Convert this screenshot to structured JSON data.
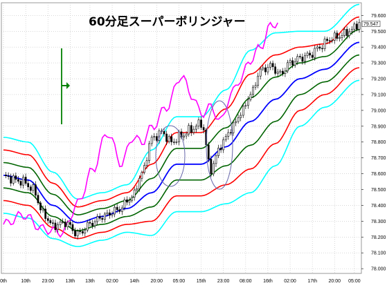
{
  "chart_data": {
    "type": "line",
    "title": "60分足スーパーボリンジャー",
    "xlabel": "",
    "ylabel": "",
    "ylim": [
      77.97,
      79.68
    ],
    "grid": true,
    "legend": "none",
    "current_price": "79.547",
    "y_ticks": [
      "79.600",
      "79.500",
      "79.400",
      "79.300",
      "79.200",
      "79.100",
      "79.000",
      "78.900",
      "78.800",
      "78.700",
      "78.600",
      "78.500",
      "78.400",
      "78.300",
      "78.200",
      "78.100",
      "78.000"
    ],
    "x_ticks": [
      "0th",
      "10th",
      "23:00",
      "13th",
      "13th",
      "02:00",
      "14th",
      "20:00",
      "05:00",
      "15th",
      "23:00",
      "08:00",
      "16th",
      "02:00",
      "17th",
      "20:00",
      "05:00"
    ],
    "x_tick_positions": [
      0,
      9,
      18,
      27,
      35,
      44,
      53,
      62,
      71,
      80,
      89,
      98,
      107,
      116,
      125,
      134,
      142
    ],
    "n": 145,
    "colors": {
      "ma": "#0000ff",
      "sigma1": "#006400",
      "sigma2": "#ff0000",
      "sigma3": "#00ffff",
      "lagging": "#ff00ff",
      "candle_up": "#ffffff",
      "candle_down": "#000000",
      "marker": "#008000",
      "ellipse": "#6666aa"
    },
    "anchors": {
      "ma": [
        [
          0,
          78.59
        ],
        [
          10,
          78.56
        ],
        [
          20,
          78.4
        ],
        [
          30,
          78.29
        ],
        [
          40,
          78.33
        ],
        [
          50,
          78.38
        ],
        [
          60,
          78.48
        ],
        [
          70,
          78.66
        ],
        [
          80,
          78.66
        ],
        [
          90,
          78.77
        ],
        [
          100,
          78.93
        ],
        [
          110,
          79.07
        ],
        [
          120,
          79.2
        ],
        [
          130,
          79.26
        ],
        [
          144,
          79.43
        ]
      ],
      "spread": [
        [
          0,
          0.08
        ],
        [
          10,
          0.08
        ],
        [
          20,
          0.07
        ],
        [
          30,
          0.05
        ],
        [
          40,
          0.05
        ],
        [
          50,
          0.05
        ],
        [
          60,
          0.09
        ],
        [
          70,
          0.1
        ],
        [
          80,
          0.1
        ],
        [
          90,
          0.12
        ],
        [
          100,
          0.15
        ],
        [
          110,
          0.14
        ],
        [
          120,
          0.1
        ],
        [
          130,
          0.08
        ],
        [
          144,
          0.08
        ]
      ],
      "lagging": [
        [
          0,
          78.28
        ],
        [
          8,
          78.34
        ],
        [
          16,
          78.25
        ],
        [
          24,
          78.23
        ],
        [
          30,
          78.41
        ],
        [
          36,
          78.62
        ],
        [
          42,
          78.86
        ],
        [
          48,
          78.66
        ],
        [
          52,
          78.83
        ],
        [
          56,
          78.8
        ],
        [
          60,
          78.89
        ],
        [
          66,
          79.02
        ],
        [
          72,
          79.22
        ],
        [
          76,
          79.1
        ],
        [
          80,
          78.98
        ],
        [
          84,
          79.02
        ],
        [
          88,
          78.93
        ],
        [
          92,
          79.1
        ],
        [
          96,
          79.2
        ],
        [
          100,
          79.32
        ],
        [
          104,
          79.4
        ],
        [
          108,
          79.53
        ],
        [
          111,
          79.56
        ]
      ],
      "close": [
        [
          0,
          78.58
        ],
        [
          8,
          78.55
        ],
        [
          12,
          78.5
        ],
        [
          16,
          78.35
        ],
        [
          20,
          78.27
        ],
        [
          25,
          78.29
        ],
        [
          30,
          78.22
        ],
        [
          36,
          78.29
        ],
        [
          40,
          78.33
        ],
        [
          46,
          78.37
        ],
        [
          52,
          78.45
        ],
        [
          56,
          78.6
        ],
        [
          60,
          78.82
        ],
        [
          64,
          78.86
        ],
        [
          68,
          78.8
        ],
        [
          72,
          78.84
        ],
        [
          76,
          78.88
        ],
        [
          80,
          78.92
        ],
        [
          84,
          78.63
        ],
        [
          88,
          78.78
        ],
        [
          92,
          78.88
        ],
        [
          96,
          78.98
        ],
        [
          100,
          79.1
        ],
        [
          104,
          79.25
        ],
        [
          108,
          79.28
        ],
        [
          112,
          79.23
        ],
        [
          116,
          79.3
        ],
        [
          120,
          79.33
        ],
        [
          124,
          79.35
        ],
        [
          128,
          79.4
        ],
        [
          132,
          79.45
        ],
        [
          136,
          79.47
        ],
        [
          140,
          79.5
        ],
        [
          144,
          79.55
        ]
      ]
    }
  }
}
